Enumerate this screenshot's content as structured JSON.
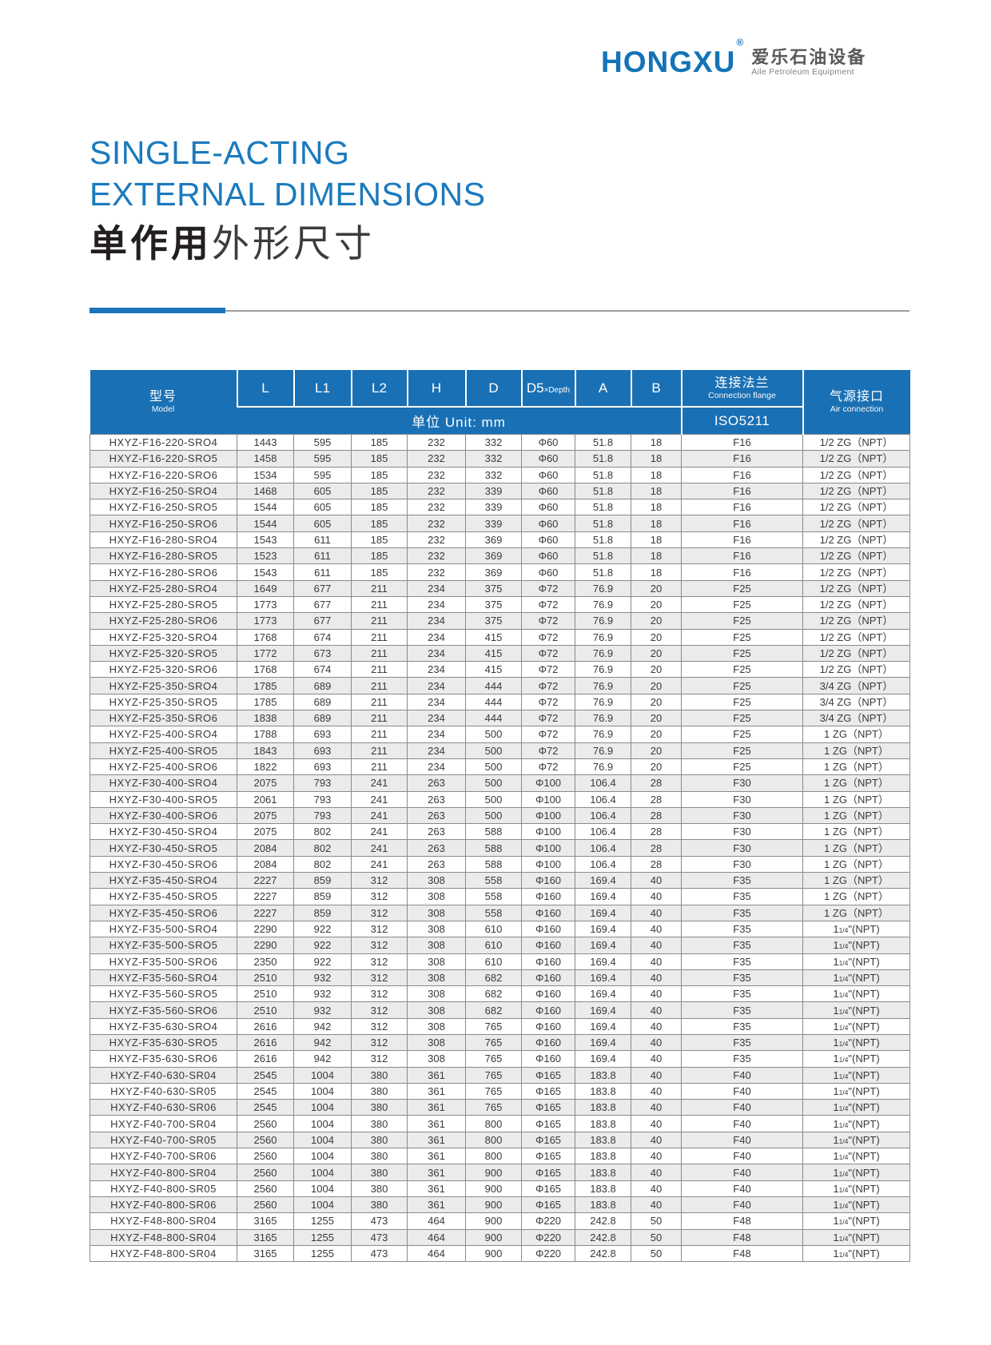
{
  "brand": {
    "logo_text": "HONGXU",
    "registered_mark": "®",
    "logo_zh": "爱乐石油设备",
    "logo_en": "Aile Petroleum Equipment"
  },
  "title": {
    "line1": "SINGLE-ACTING",
    "line2": "EXTERNAL DIMENSIONS",
    "line3_bold": "单作用",
    "line3_regular": "外形尺寸"
  },
  "colors": {
    "brand_blue": "#1473b8",
    "title_blue": "#1b7abd",
    "header_blue": "#1a70b4",
    "row_alt_gray": "#ebebeb",
    "divider_blue": "#1b74b8",
    "divider_gray": "#9d9d9c",
    "text_dark": "#3a3a3a"
  },
  "table": {
    "header": {
      "model_zh": "型号",
      "model_en": "Model",
      "dims": [
        {
          "label": "L"
        },
        {
          "label": "L1"
        },
        {
          "label": "L2"
        },
        {
          "label": "H"
        },
        {
          "label": "D"
        },
        {
          "label": "D5",
          "sub": "×Depth"
        },
        {
          "label": "A"
        },
        {
          "label": "B"
        }
      ],
      "unit_label": "单位 Unit: mm",
      "flange_zh": "连接法兰",
      "flange_en": "Connection flange",
      "flange_std": "ISO5211",
      "air_zh": "气源接口",
      "air_en": "Air connection"
    },
    "rows": [
      [
        "HXYZ-F16-220-SRO4",
        "1443",
        "595",
        "185",
        "232",
        "332",
        "Φ60",
        "51.8",
        "18",
        "F16",
        "1/2 ZG（NPT）"
      ],
      [
        "HXYZ-F16-220-SRO5",
        "1458",
        "595",
        "185",
        "232",
        "332",
        "Φ60",
        "51.8",
        "18",
        "F16",
        "1/2 ZG（NPT）"
      ],
      [
        "HXYZ-F16-220-SRO6",
        "1534",
        "595",
        "185",
        "232",
        "332",
        "Φ60",
        "51.8",
        "18",
        "F16",
        "1/2 ZG（NPT）"
      ],
      [
        "HXYZ-F16-250-SRO4",
        "1468",
        "605",
        "185",
        "232",
        "339",
        "Φ60",
        "51.8",
        "18",
        "F16",
        "1/2 ZG（NPT）"
      ],
      [
        "HXYZ-F16-250-SRO5",
        "1544",
        "605",
        "185",
        "232",
        "339",
        "Φ60",
        "51.8",
        "18",
        "F16",
        "1/2 ZG（NPT）"
      ],
      [
        "HXYZ-F16-250-SRO6",
        "1544",
        "605",
        "185",
        "232",
        "339",
        "Φ60",
        "51.8",
        "18",
        "F16",
        "1/2 ZG（NPT）"
      ],
      [
        "HXYZ-F16-280-SRO4",
        "1543",
        "611",
        "185",
        "232",
        "369",
        "Φ60",
        "51.8",
        "18",
        "F16",
        "1/2 ZG（NPT）"
      ],
      [
        "HXYZ-F16-280-SRO5",
        "1523",
        "611",
        "185",
        "232",
        "369",
        "Φ60",
        "51.8",
        "18",
        "F16",
        "1/2 ZG（NPT）"
      ],
      [
        "HXYZ-F16-280-SRO6",
        "1543",
        "611",
        "185",
        "232",
        "369",
        "Φ60",
        "51.8",
        "18",
        "F16",
        "1/2 ZG（NPT）"
      ],
      [
        "HXYZ-F25-280-SRO4",
        "1649",
        "677",
        "211",
        "234",
        "375",
        "Φ72",
        "76.9",
        "20",
        "F25",
        "1/2 ZG（NPT）"
      ],
      [
        "HXYZ-F25-280-SRO5",
        "1773",
        "677",
        "211",
        "234",
        "375",
        "Φ72",
        "76.9",
        "20",
        "F25",
        "1/2 ZG（NPT）"
      ],
      [
        "HXYZ-F25-280-SRO6",
        "1773",
        "677",
        "211",
        "234",
        "375",
        "Φ72",
        "76.9",
        "20",
        "F25",
        "1/2 ZG（NPT）"
      ],
      [
        "HXYZ-F25-320-SRO4",
        "1768",
        "674",
        "211",
        "234",
        "415",
        "Φ72",
        "76.9",
        "20",
        "F25",
        "1/2 ZG（NPT）"
      ],
      [
        "HXYZ-F25-320-SRO5",
        "1772",
        "673",
        "211",
        "234",
        "415",
        "Φ72",
        "76.9",
        "20",
        "F25",
        "1/2 ZG（NPT）"
      ],
      [
        "HXYZ-F25-320-SRO6",
        "1768",
        "674",
        "211",
        "234",
        "415",
        "Φ72",
        "76.9",
        "20",
        "F25",
        "1/2 ZG（NPT）"
      ],
      [
        "HXYZ-F25-350-SRO4",
        "1785",
        "689",
        "211",
        "234",
        "444",
        "Φ72",
        "76.9",
        "20",
        "F25",
        "3/4 ZG（NPT）"
      ],
      [
        "HXYZ-F25-350-SRO5",
        "1785",
        "689",
        "211",
        "234",
        "444",
        "Φ72",
        "76.9",
        "20",
        "F25",
        "3/4 ZG（NPT）"
      ],
      [
        "HXYZ-F25-350-SRO6",
        "1838",
        "689",
        "211",
        "234",
        "444",
        "Φ72",
        "76.9",
        "20",
        "F25",
        "3/4 ZG（NPT）"
      ],
      [
        "HXYZ-F25-400-SRO4",
        "1788",
        "693",
        "211",
        "234",
        "500",
        "Φ72",
        "76.9",
        "20",
        "F25",
        "1 ZG（NPT）"
      ],
      [
        "HXYZ-F25-400-SRO5",
        "1843",
        "693",
        "211",
        "234",
        "500",
        "Φ72",
        "76.9",
        "20",
        "F25",
        "1 ZG（NPT）"
      ],
      [
        "HXYZ-F25-400-SRO6",
        "1822",
        "693",
        "211",
        "234",
        "500",
        "Φ72",
        "76.9",
        "20",
        "F25",
        "1 ZG（NPT）"
      ],
      [
        "HXYZ-F30-400-SRO4",
        "2075",
        "793",
        "241",
        "263",
        "500",
        "Φ100",
        "106.4",
        "28",
        "F30",
        "1 ZG（NPT）"
      ],
      [
        "HXYZ-F30-400-SRO5",
        "2061",
        "793",
        "241",
        "263",
        "500",
        "Φ100",
        "106.4",
        "28",
        "F30",
        "1 ZG（NPT）"
      ],
      [
        "HXYZ-F30-400-SRO6",
        "2075",
        "793",
        "241",
        "263",
        "500",
        "Φ100",
        "106.4",
        "28",
        "F30",
        "1 ZG（NPT）"
      ],
      [
        "HXYZ-F30-450-SRO4",
        "2075",
        "802",
        "241",
        "263",
        "588",
        "Φ100",
        "106.4",
        "28",
        "F30",
        "1 ZG（NPT）"
      ],
      [
        "HXYZ-F30-450-SRO5",
        "2084",
        "802",
        "241",
        "263",
        "588",
        "Φ100",
        "106.4",
        "28",
        "F30",
        "1 ZG（NPT）"
      ],
      [
        "HXYZ-F30-450-SRO6",
        "2084",
        "802",
        "241",
        "263",
        "588",
        "Φ100",
        "106.4",
        "28",
        "F30",
        "1 ZG（NPT）"
      ],
      [
        "HXYZ-F35-450-SRO4",
        "2227",
        "859",
        "312",
        "308",
        "558",
        "Φ160",
        "169.4",
        "40",
        "F35",
        "1 ZG（NPT）"
      ],
      [
        "HXYZ-F35-450-SRO5",
        "2227",
        "859",
        "312",
        "308",
        "558",
        "Φ160",
        "169.4",
        "40",
        "F35",
        "1 ZG（NPT）"
      ],
      [
        "HXYZ-F35-450-SRO6",
        "2227",
        "859",
        "312",
        "308",
        "558",
        "Φ160",
        "169.4",
        "40",
        "F35",
        "1 ZG（NPT）"
      ],
      [
        "HXYZ-F35-500-SRO4",
        "2290",
        "922",
        "312",
        "308",
        "610",
        "Φ160",
        "169.4",
        "40",
        "F35",
        "1 1/4\"(NPT)"
      ],
      [
        "HXYZ-F35-500-SRO5",
        "2290",
        "922",
        "312",
        "308",
        "610",
        "Φ160",
        "169.4",
        "40",
        "F35",
        "1 1/4\"(NPT)"
      ],
      [
        "HXYZ-F35-500-SRO6",
        "2350",
        "922",
        "312",
        "308",
        "610",
        "Φ160",
        "169.4",
        "40",
        "F35",
        "1 1/4\"(NPT)"
      ],
      [
        "HXYZ-F35-560-SRO4",
        "2510",
        "932",
        "312",
        "308",
        "682",
        "Φ160",
        "169.4",
        "40",
        "F35",
        "1 1/4\"(NPT)"
      ],
      [
        "HXYZ-F35-560-SRO5",
        "2510",
        "932",
        "312",
        "308",
        "682",
        "Φ160",
        "169.4",
        "40",
        "F35",
        "1 1/4\"(NPT)"
      ],
      [
        "HXYZ-F35-560-SRO6",
        "2510",
        "932",
        "312",
        "308",
        "682",
        "Φ160",
        "169.4",
        "40",
        "F35",
        "1 1/4\"(NPT)"
      ],
      [
        "HXYZ-F35-630-SRO4",
        "2616",
        "942",
        "312",
        "308",
        "765",
        "Φ160",
        "169.4",
        "40",
        "F35",
        "1 1/4\"(NPT)"
      ],
      [
        "HXYZ-F35-630-SRO5",
        "2616",
        "942",
        "312",
        "308",
        "765",
        "Φ160",
        "169.4",
        "40",
        "F35",
        "1 1/4\"(NPT)"
      ],
      [
        "HXYZ-F35-630-SRO6",
        "2616",
        "942",
        "312",
        "308",
        "765",
        "Φ160",
        "169.4",
        "40",
        "F35",
        "1 1/4\"(NPT)"
      ],
      [
        "HXYZ-F40-630-SR04",
        "2545",
        "1004",
        "380",
        "361",
        "765",
        "Φ165",
        "183.8",
        "40",
        "F40",
        "1 1/4\"(NPT)"
      ],
      [
        "HXYZ-F40-630-SR05",
        "2545",
        "1004",
        "380",
        "361",
        "765",
        "Φ165",
        "183.8",
        "40",
        "F40",
        "1 1/4\"(NPT)"
      ],
      [
        "HXYZ-F40-630-SR06",
        "2545",
        "1004",
        "380",
        "361",
        "765",
        "Φ165",
        "183.8",
        "40",
        "F40",
        "1 1/4\"(NPT)"
      ],
      [
        "HXYZ-F40-700-SR04",
        "2560",
        "1004",
        "380",
        "361",
        "800",
        "Φ165",
        "183.8",
        "40",
        "F40",
        "1 1/4\"(NPT)"
      ],
      [
        "HXYZ-F40-700-SR05",
        "2560",
        "1004",
        "380",
        "361",
        "800",
        "Φ165",
        "183.8",
        "40",
        "F40",
        "1 1/4\"(NPT)"
      ],
      [
        "HXYZ-F40-700-SR06",
        "2560",
        "1004",
        "380",
        "361",
        "800",
        "Φ165",
        "183.8",
        "40",
        "F40",
        "1 1/4\"(NPT)"
      ],
      [
        "HXYZ-F40-800-SR04",
        "2560",
        "1004",
        "380",
        "361",
        "900",
        "Φ165",
        "183.8",
        "40",
        "F40",
        "1 1/4\"(NPT)"
      ],
      [
        "HXYZ-F40-800-SR05",
        "2560",
        "1004",
        "380",
        "361",
        "900",
        "Φ165",
        "183.8",
        "40",
        "F40",
        "1 1/4\"(NPT)"
      ],
      [
        "HXYZ-F40-800-SR06",
        "2560",
        "1004",
        "380",
        "361",
        "900",
        "Φ165",
        "183.8",
        "40",
        "F40",
        "1 1/4\"(NPT)"
      ],
      [
        "HXYZ-F48-800-SR04",
        "3165",
        "1255",
        "473",
        "464",
        "900",
        "Φ220",
        "242.8",
        "50",
        "F48",
        "1 1/4\"(NPT)"
      ],
      [
        "HXYZ-F48-800-SR04",
        "3165",
        "1255",
        "473",
        "464",
        "900",
        "Φ220",
        "242.8",
        "50",
        "F48",
        "1 1/4\"(NPT)"
      ],
      [
        "HXYZ-F48-800-SR04",
        "3165",
        "1255",
        "473",
        "464",
        "900",
        "Φ220",
        "242.8",
        "50",
        "F48",
        "1 1/4\"(NPT)"
      ]
    ]
  }
}
